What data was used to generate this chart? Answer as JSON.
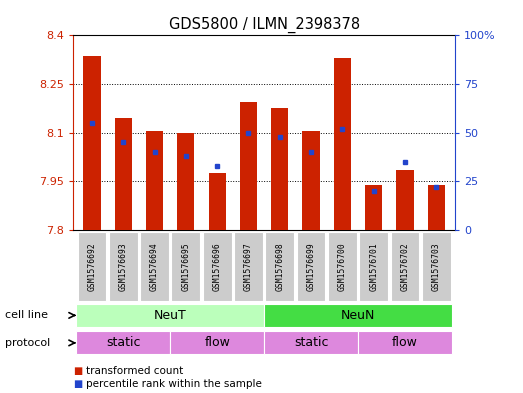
{
  "title": "GDS5800 / ILMN_2398378",
  "samples": [
    "GSM1576692",
    "GSM1576693",
    "GSM1576694",
    "GSM1576695",
    "GSM1576696",
    "GSM1576697",
    "GSM1576698",
    "GSM1576699",
    "GSM1576700",
    "GSM1576701",
    "GSM1576702",
    "GSM1576703"
  ],
  "bar_values": [
    8.335,
    8.145,
    8.105,
    8.1,
    7.975,
    8.195,
    8.175,
    8.105,
    8.33,
    7.94,
    7.985,
    7.94
  ],
  "blue_values": [
    55,
    45,
    40,
    38,
    33,
    50,
    48,
    40,
    52,
    20,
    35,
    22
  ],
  "ymin": 7.8,
  "ymax": 8.4,
  "yticks": [
    7.8,
    7.95,
    8.1,
    8.25,
    8.4
  ],
  "ytick_labels": [
    "7.8",
    "7.95",
    "8.1",
    "8.25",
    "8.4"
  ],
  "y2min": 0,
  "y2max": 100,
  "y2ticks": [
    0,
    25,
    50,
    75,
    100
  ],
  "y2tick_labels": [
    "0",
    "25",
    "50",
    "75",
    "100%"
  ],
  "bar_color": "#cc2200",
  "blue_color": "#2244cc",
  "bar_width": 0.55,
  "NeuT_color": "#bbffbb",
  "NeuN_color": "#44dd44",
  "protocol_color": "#dd88dd",
  "legend_items": [
    {
      "color": "#cc2200",
      "label": "transformed count"
    },
    {
      "color": "#2244cc",
      "label": "percentile rank within the sample"
    }
  ],
  "bg_color": "#ffffff",
  "tick_bg": "#cccccc"
}
